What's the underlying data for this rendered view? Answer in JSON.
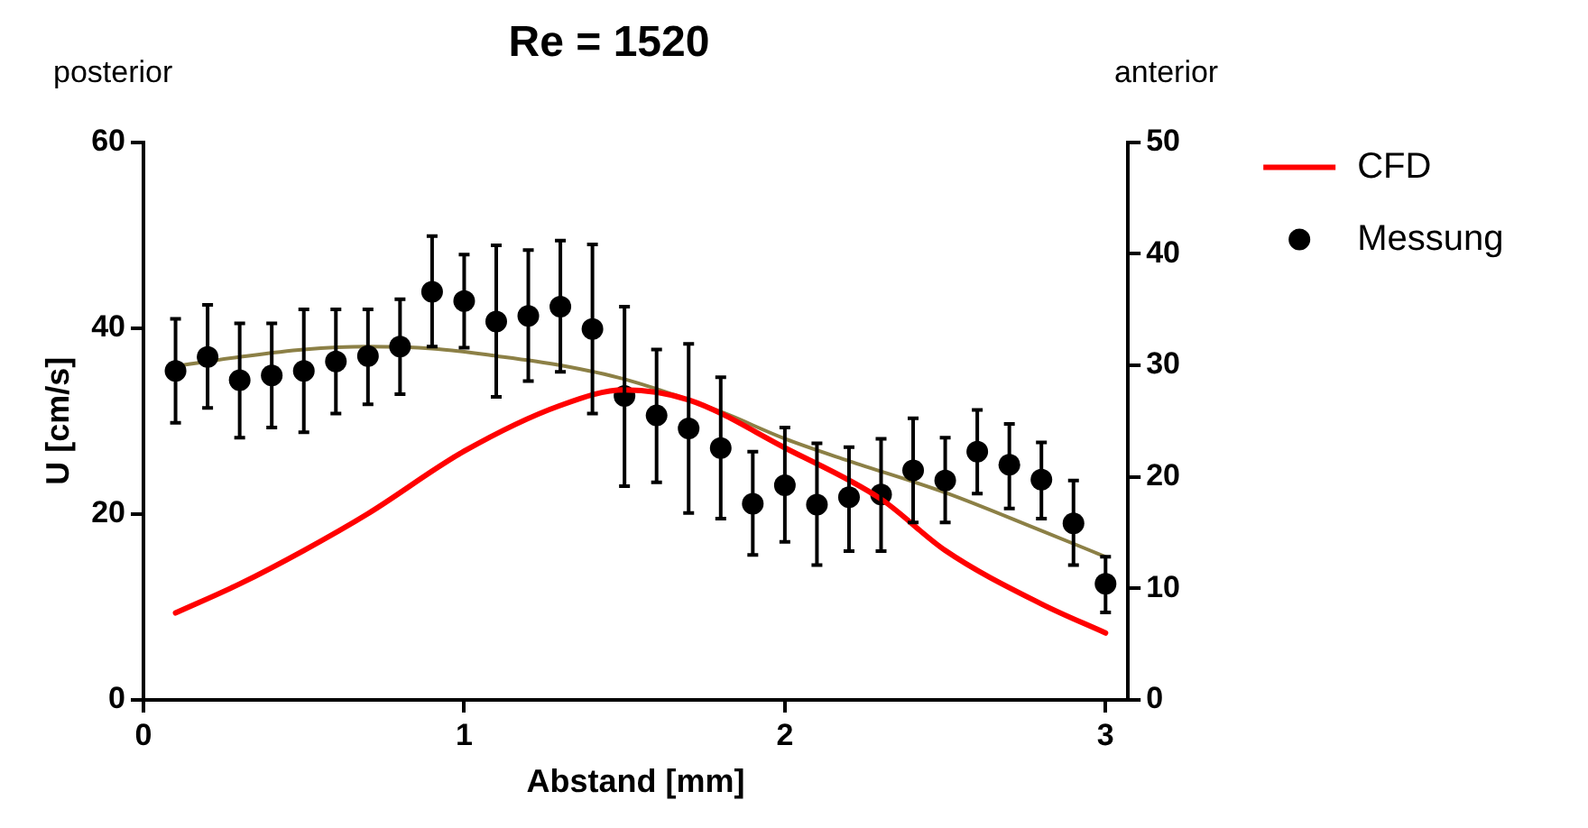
{
  "chart_data": {
    "type": "scatter",
    "title": "Re = 1520",
    "xlabel": "Abstand [mm]",
    "ylabel": "U [cm/s]",
    "annotations": [
      "posterior",
      "anterior"
    ],
    "xlim": [
      0,
      3.07
    ],
    "xticks": [
      0,
      1,
      2,
      3
    ],
    "ylim": [
      0,
      60
    ],
    "yticks": [
      0,
      20,
      40,
      60
    ],
    "y2lim": [
      0,
      50
    ],
    "y2ticks": [
      0,
      10,
      20,
      30,
      40,
      50
    ],
    "grid": false,
    "legend": "right",
    "series": [
      {
        "name": "CFD",
        "type": "line",
        "axis": "y2",
        "color": "#ff0000",
        "line_style": "solid",
        "marker": "none",
        "x": [
          0.1,
          0.3,
          0.5,
          0.7,
          1.0,
          1.3,
          1.5,
          1.7,
          2.0,
          2.3,
          2.5,
          2.8,
          3.0
        ],
        "values": [
          7.8,
          10.4,
          13.4,
          16.7,
          22.3,
          26.4,
          27.8,
          26.9,
          22.6,
          18.0,
          13.4,
          8.6,
          6.0
        ]
      },
      {
        "name": "Messung",
        "type": "scatter",
        "color": "#000000",
        "marker": "circle",
        "x": [
          0.1,
          0.2,
          0.3,
          0.4,
          0.5,
          0.6,
          0.7,
          0.8,
          0.9,
          1.0,
          1.1,
          1.2,
          1.3,
          1.4,
          1.5,
          1.6,
          1.7,
          1.8,
          1.9,
          2.0,
          2.1,
          2.2,
          2.3,
          2.4,
          2.5,
          2.6,
          2.7,
          2.8,
          2.9,
          3.0
        ],
        "values": [
          35.4,
          36.9,
          34.4,
          34.9,
          35.4,
          36.4,
          37.0,
          38.0,
          43.9,
          42.9,
          40.7,
          41.3,
          42.3,
          39.9,
          32.7,
          30.6,
          29.2,
          27.1,
          21.1,
          23.1,
          21.0,
          21.8,
          22.1,
          24.7,
          23.6,
          26.7,
          25.3,
          23.7,
          19.0,
          12.5
        ],
        "errors": [
          [
            29.8,
            41.0
          ],
          [
            31.4,
            42.5
          ],
          [
            28.2,
            40.5
          ],
          [
            29.3,
            40.5
          ],
          [
            28.8,
            42.0
          ],
          [
            30.8,
            42.0
          ],
          [
            31.8,
            42.0
          ],
          [
            32.9,
            43.1
          ],
          [
            38.0,
            49.9
          ],
          [
            37.9,
            47.9
          ],
          [
            32.6,
            48.9
          ],
          [
            34.3,
            48.4
          ],
          [
            35.3,
            49.4
          ],
          [
            30.8,
            49.0
          ],
          [
            23.0,
            42.3
          ],
          [
            23.4,
            37.7
          ],
          [
            20.1,
            38.3
          ],
          [
            19.5,
            34.7
          ],
          [
            15.6,
            26.7
          ],
          [
            17.0,
            29.3
          ],
          [
            14.5,
            27.6
          ],
          [
            16.0,
            27.2
          ],
          [
            16.0,
            28.1
          ],
          [
            19.1,
            30.3
          ],
          [
            19.1,
            28.2
          ],
          [
            22.2,
            31.2
          ],
          [
            20.6,
            29.7
          ],
          [
            19.5,
            27.7
          ],
          [
            14.5,
            23.6
          ],
          [
            9.4,
            15.4
          ]
        ]
      },
      {
        "type": "line",
        "color": "#8c8046",
        "line_style": "solid",
        "marker": "none",
        "x": [
          0.1,
          0.3,
          0.5,
          0.7,
          0.9,
          1.1,
          1.3,
          1.5,
          1.8,
          2.0,
          2.2,
          2.5,
          2.8,
          3.0
        ],
        "values": [
          35.9,
          36.9,
          37.7,
          38.0,
          37.8,
          37.0,
          36.0,
          34.5,
          31.0,
          28.1,
          25.7,
          22.3,
          18.2,
          15.4
        ]
      }
    ]
  }
}
